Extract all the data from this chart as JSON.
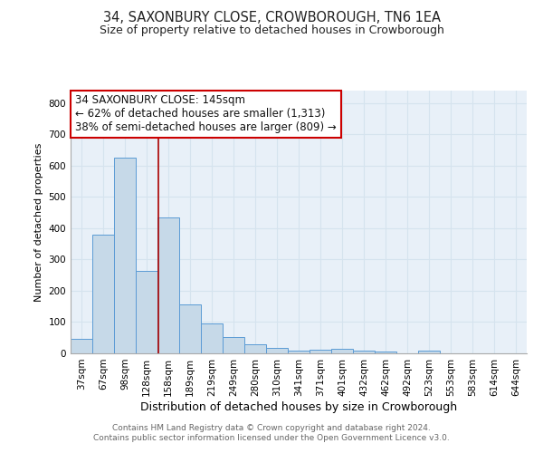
{
  "title": "34, SAXONBURY CLOSE, CROWBOROUGH, TN6 1EA",
  "subtitle": "Size of property relative to detached houses in Crowborough",
  "xlabel": "Distribution of detached houses by size in Crowborough",
  "ylabel": "Number of detached properties",
  "footer1": "Contains HM Land Registry data © Crown copyright and database right 2024.",
  "footer2": "Contains public sector information licensed under the Open Government Licence v3.0.",
  "bin_labels": [
    "37sqm",
    "67sqm",
    "98sqm",
    "128sqm",
    "158sqm",
    "189sqm",
    "219sqm",
    "249sqm",
    "280sqm",
    "310sqm",
    "341sqm",
    "371sqm",
    "401sqm",
    "432sqm",
    "462sqm",
    "492sqm",
    "523sqm",
    "553sqm",
    "583sqm",
    "614sqm",
    "644sqm"
  ],
  "bar_values": [
    47,
    380,
    625,
    265,
    435,
    155,
    95,
    53,
    30,
    18,
    10,
    12,
    14,
    8,
    5,
    0,
    8,
    0,
    0,
    0,
    0
  ],
  "bar_color": "#c6d9e8",
  "bar_edge_color": "#5b9bd5",
  "grid_color": "#d5e3ee",
  "annotation_text": "34 SAXONBURY CLOSE: 145sqm\n← 62% of detached houses are smaller (1,313)\n38% of semi-detached houses are larger (809) →",
  "annotation_box_color": "#ffffff",
  "annotation_box_edge_color": "#cc0000",
  "vline_color": "#aa0000",
  "vline_x": 3.53,
  "annotation_fontsize": 8.5,
  "ylim": [
    0,
    840
  ],
  "yticks": [
    0,
    100,
    200,
    300,
    400,
    500,
    600,
    700,
    800
  ],
  "background_color": "#ffffff",
  "title_fontsize": 10.5,
  "subtitle_fontsize": 9,
  "xlabel_fontsize": 9,
  "ylabel_fontsize": 8,
  "tick_fontsize": 7.5,
  "footer_fontsize": 6.5,
  "plot_bg_color": "#e8f0f8"
}
